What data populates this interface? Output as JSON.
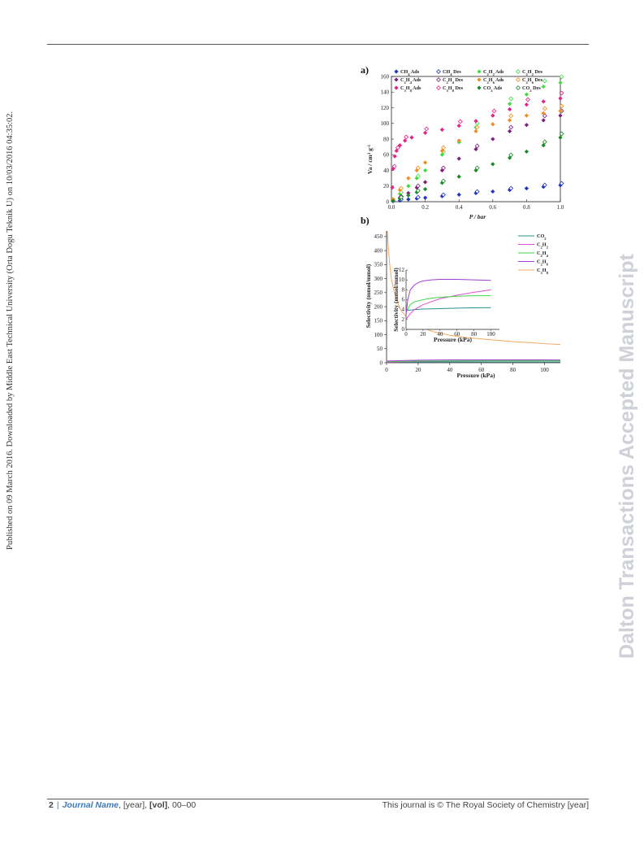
{
  "side_note": "Published on 09 March 2016. Downloaded by Middle East Technical University (Orta Dogu Teknik U) on 10/03/2016 04:35:02.",
  "watermark": "Dalton Transactions Accepted Manuscript",
  "footer": {
    "page": "2",
    "journal": "Journal Name",
    "year": "[year]",
    "vol": "[vol]",
    "pages": "00–00",
    "copyright": "This journal is © The Royal Society of Chemistry [year]"
  },
  "chart_data": [
    {
      "type": "scatter",
      "panel": "a)",
      "xlabel": "P / bar",
      "ylabel": "Va / cm3 g-1",
      "xlim": [
        0,
        1.0
      ],
      "ylim": [
        0,
        160
      ],
      "xticks": [
        0.0,
        0.2,
        0.4,
        0.6,
        0.8,
        1.0
      ],
      "yticks": [
        0,
        20,
        40,
        60,
        80,
        100,
        120,
        140,
        160
      ],
      "legend": [
        {
          "label": "CH4 Ads",
          "color": "#1f33c4",
          "filled": true
        },
        {
          "label": "CH4 Des",
          "color": "#1f33c4",
          "filled": false
        },
        {
          "label": "C2H2 Ads",
          "color": "#3ddc3d",
          "filled": true
        },
        {
          "label": "C2H2 Des",
          "color": "#3ddc3d",
          "filled": false
        },
        {
          "label": "C2H4 Ads",
          "color": "#7d1f7d",
          "filled": true
        },
        {
          "label": "C2H4 Des",
          "color": "#7d1f7d",
          "filled": false
        },
        {
          "label": "C2H6 Ads",
          "color": "#f08c1e",
          "filled": true
        },
        {
          "label": "C2H6 Des",
          "color": "#f08c1e",
          "filled": false
        },
        {
          "label": "C3H8 Ads",
          "color": "#e8208a",
          "filled": true
        },
        {
          "label": "C3H8 Des",
          "color": "#e8208a",
          "filled": false
        },
        {
          "label": "CO2 Ads",
          "color": "#1d8a2a",
          "filled": true
        },
        {
          "label": "CO2 Des",
          "color": "#1d8a2a",
          "filled": false
        }
      ],
      "series": [
        {
          "name": "CH4",
          "color": "#1f33c4",
          "x": [
            0.01,
            0.05,
            0.1,
            0.15,
            0.2,
            0.3,
            0.4,
            0.5,
            0.6,
            0.7,
            0.8,
            0.9,
            1.0
          ],
          "y": [
            0.5,
            1.5,
            3,
            4,
            5,
            7,
            9,
            11,
            13,
            15,
            17,
            19,
            21
          ]
        },
        {
          "name": "C2H2",
          "color": "#3ddc3d",
          "x": [
            0.01,
            0.05,
            0.1,
            0.15,
            0.2,
            0.3,
            0.4,
            0.5,
            0.6,
            0.7,
            0.8,
            0.9,
            1.0
          ],
          "y": [
            3,
            10,
            20,
            30,
            40,
            60,
            76,
            95,
            110,
            125,
            137,
            147,
            152
          ]
        },
        {
          "name": "C2H4",
          "color": "#7d1f7d",
          "x": [
            0.01,
            0.05,
            0.1,
            0.15,
            0.2,
            0.3,
            0.4,
            0.5,
            0.6,
            0.7,
            0.8,
            0.9,
            1.0
          ],
          "y": [
            2,
            5,
            11,
            18,
            25,
            40,
            55,
            67,
            80,
            90,
            98,
            104,
            110
          ]
        },
        {
          "name": "C2H6",
          "color": "#f08c1e",
          "x": [
            0.01,
            0.05,
            0.1,
            0.15,
            0.2,
            0.3,
            0.4,
            0.5,
            0.6,
            0.7,
            0.8,
            0.9,
            1.0
          ],
          "y": [
            3,
            15,
            30,
            40,
            50,
            65,
            78,
            90,
            99,
            104,
            110,
            113,
            116
          ]
        },
        {
          "name": "C3H8",
          "color": "#e8208a",
          "x": [
            0.005,
            0.01,
            0.02,
            0.03,
            0.05,
            0.08,
            0.12,
            0.2,
            0.3,
            0.4,
            0.5,
            0.6,
            0.7,
            0.8,
            0.9,
            1.0
          ],
          "y": [
            18,
            42,
            58,
            65,
            72,
            78,
            82,
            88,
            92,
            97,
            103,
            110,
            118,
            124,
            128,
            132
          ]
        },
        {
          "name": "CO2",
          "color": "#1d8a2a",
          "x": [
            0.01,
            0.05,
            0.1,
            0.15,
            0.2,
            0.3,
            0.4,
            0.5,
            0.6,
            0.7,
            0.8,
            0.9,
            1.0
          ],
          "y": [
            1,
            4,
            8,
            12,
            16,
            24,
            32,
            40,
            48,
            56,
            64,
            72,
            82
          ]
        }
      ]
    },
    {
      "type": "line",
      "panel": "b)",
      "xlabel": "Pressure (kPa)",
      "ylabel": "Selectivity (mmol/mmol)",
      "xlim": [
        0,
        110
      ],
      "ylim": [
        0,
        470
      ],
      "xticks": [
        0,
        20,
        40,
        60,
        80,
        100
      ],
      "yticks": [
        0,
        50,
        100,
        150,
        200,
        250,
        300,
        350,
        400,
        450
      ],
      "legend_position": "top-right",
      "series": [
        {
          "name": "CO2",
          "color": "#2a8f8f",
          "x": [
            0,
            20,
            40,
            60,
            80,
            100,
            110
          ],
          "y": [
            3,
            3,
            3,
            3,
            3,
            3,
            3
          ]
        },
        {
          "name": "C2H2",
          "color": "#e04fd0",
          "x": [
            0,
            20,
            40,
            60,
            80,
            100,
            110
          ],
          "y": [
            2,
            5,
            6,
            7,
            8,
            9,
            9
          ]
        },
        {
          "name": "C2H4",
          "color": "#44d64a",
          "x": [
            0,
            20,
            40,
            60,
            80,
            100,
            110
          ],
          "y": [
            4,
            6,
            6.5,
            6.8,
            7,
            7,
            7
          ]
        },
        {
          "name": "C2H6",
          "color": "#a040d0",
          "x": [
            0,
            20,
            40,
            60,
            80,
            100,
            110
          ],
          "y": [
            6,
            9,
            10,
            10.3,
            10.2,
            10,
            9.8
          ]
        },
        {
          "name": "C3H8",
          "color": "#f0a860",
          "x": [
            0.5,
            1,
            2,
            3,
            5,
            8,
            10,
            15,
            20,
            30,
            40,
            50,
            60,
            70,
            80,
            90,
            100,
            110
          ],
          "y": [
            470,
            420,
            350,
            300,
            250,
            200,
            180,
            150,
            130,
            110,
            98,
            90,
            85,
            80,
            75,
            72,
            68,
            65
          ]
        }
      ],
      "inset": {
        "xlabel": "Pressure (kPa)",
        "ylabel": "Selectivity (mmol/mmol)",
        "xlim": [
          0,
          110
        ],
        "ylim": [
          0,
          12
        ],
        "xticks": [
          0,
          20,
          40,
          60,
          80,
          100
        ],
        "yticks": [
          0,
          2,
          4,
          6,
          8,
          10,
          12
        ],
        "series": [
          {
            "name": "CO2",
            "color": "#2a8f8f",
            "x": [
              0,
              10,
              20,
              40,
              60,
              80,
              100
            ],
            "y": [
              3.8,
              4,
              4.1,
              4.2,
              4.3,
              4.35,
              4.4
            ]
          },
          {
            "name": "C2H2",
            "color": "#e04fd0",
            "x": [
              0,
              5,
              10,
              20,
              30,
              40,
              60,
              80,
              100
            ],
            "y": [
              2,
              3.2,
              4,
              5,
              5.6,
              6.2,
              6.9,
              7.5,
              8
            ]
          },
          {
            "name": "C2H4",
            "color": "#44d64a",
            "x": [
              0,
              5,
              10,
              20,
              30,
              40,
              60,
              80,
              100
            ],
            "y": [
              3.5,
              5,
              5.6,
              6,
              6.3,
              6.5,
              6.7,
              6.8,
              6.8
            ]
          },
          {
            "name": "C2H6",
            "color": "#a040d0",
            "x": [
              0,
              2,
              5,
              10,
              15,
              20,
              30,
              40,
              60,
              80,
              100
            ],
            "y": [
              3,
              6,
              8,
              9,
              9.5,
              9.8,
              10,
              10.1,
              10.1,
              10,
              9.9
            ]
          }
        ]
      }
    }
  ]
}
